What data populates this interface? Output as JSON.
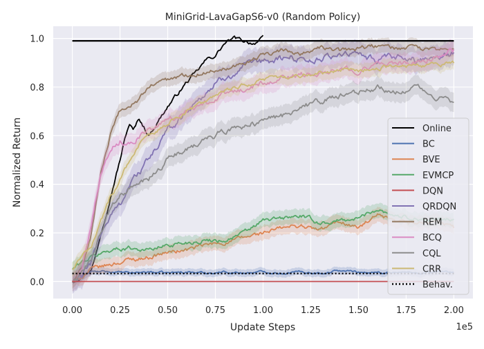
{
  "chart_data": {
    "type": "line",
    "title": "MiniGrid-LavaGapS6-v0 (Random Policy)",
    "xlabel": "Update Steps",
    "ylabel": "Normalized Return",
    "x_offset_text": "1e5",
    "xlim": [
      -0.1,
      2.1
    ],
    "ylim": [
      -0.07,
      1.05
    ],
    "x_unit_scale": 100000,
    "xticks": [
      0.0,
      0.25,
      0.5,
      0.75,
      1.0,
      1.25,
      1.5,
      1.75,
      2.0
    ],
    "xtick_labels": [
      "0.00",
      "0.25",
      "0.50",
      "0.75",
      "1.00",
      "1.25",
      "1.50",
      "1.75",
      "2.00"
    ],
    "yticks": [
      0.0,
      0.2,
      0.4,
      0.6,
      0.8,
      1.0
    ],
    "ytick_labels": [
      "0.0",
      "0.2",
      "0.4",
      "0.6",
      "0.8",
      "1.0"
    ],
    "grid": true,
    "background": "#eaeaf2",
    "legend_position": "center-right",
    "series": [
      {
        "name": "Online",
        "color": "#000000",
        "dash": "solid",
        "band": 0,
        "x": [
          0.0,
          0.1,
          0.12,
          0.15,
          0.2,
          0.25,
          0.28,
          0.3,
          0.32,
          0.35,
          0.38,
          0.4,
          0.45,
          0.5,
          0.55,
          0.6,
          0.65,
          0.7,
          0.75,
          0.8,
          0.85,
          0.9,
          0.95,
          1.0
        ],
        "y": [
          0.0,
          0.05,
          0.1,
          0.2,
          0.35,
          0.5,
          0.6,
          0.65,
          0.62,
          0.67,
          0.63,
          0.6,
          0.66,
          0.72,
          0.77,
          0.82,
          0.86,
          0.91,
          0.93,
          0.98,
          1.0,
          0.99,
          0.98,
          1.0
        ]
      },
      {
        "name": "BC",
        "color": "#4c72b0",
        "dash": "solid",
        "band": 0.015,
        "x": [
          0.0,
          0.05,
          0.1,
          0.2,
          0.3,
          0.4,
          0.5,
          0.6,
          0.7,
          0.8,
          0.9,
          1.0,
          1.1,
          1.2,
          1.3,
          1.4,
          1.5,
          1.6,
          1.7,
          1.8,
          1.9,
          2.0
        ],
        "y": [
          0.0,
          0.02,
          0.04,
          0.04,
          0.035,
          0.04,
          0.035,
          0.04,
          0.035,
          0.04,
          0.035,
          0.04,
          0.035,
          0.04,
          0.035,
          0.045,
          0.04,
          0.035,
          0.04,
          0.035,
          0.04,
          0.04
        ]
      },
      {
        "name": "BVE",
        "color": "#dd8452",
        "dash": "solid",
        "band": 0.03,
        "x": [
          0.0,
          0.05,
          0.1,
          0.2,
          0.3,
          0.4,
          0.5,
          0.6,
          0.7,
          0.8,
          0.9,
          1.0,
          1.1,
          1.2,
          1.3,
          1.4,
          1.5,
          1.6,
          1.7,
          1.8,
          1.9,
          2.0
        ],
        "y": [
          0.0,
          0.02,
          0.05,
          0.07,
          0.09,
          0.1,
          0.12,
          0.13,
          0.15,
          0.16,
          0.18,
          0.2,
          0.22,
          0.23,
          0.21,
          0.25,
          0.22,
          0.27,
          0.24,
          0.24,
          0.25,
          0.22
        ]
      },
      {
        "name": "EVMCP",
        "color": "#55a868",
        "dash": "solid",
        "band": 0.03,
        "x": [
          0.0,
          0.05,
          0.1,
          0.2,
          0.3,
          0.4,
          0.5,
          0.6,
          0.7,
          0.8,
          0.9,
          1.0,
          1.1,
          1.2,
          1.3,
          1.4,
          1.5,
          1.6,
          1.7,
          1.8,
          1.9,
          2.0
        ],
        "y": [
          0.05,
          0.08,
          0.1,
          0.13,
          0.14,
          0.13,
          0.15,
          0.16,
          0.17,
          0.17,
          0.2,
          0.25,
          0.26,
          0.27,
          0.24,
          0.25,
          0.26,
          0.3,
          0.27,
          0.26,
          0.25,
          0.26
        ]
      },
      {
        "name": "DQN",
        "color": "#c44e52",
        "dash": "solid",
        "band": 0,
        "x": [
          0.0,
          2.0
        ],
        "y": [
          0.0,
          0.0
        ]
      },
      {
        "name": "QRDQN",
        "color": "#8172b3",
        "dash": "solid",
        "band": 0.05,
        "x": [
          0.0,
          0.05,
          0.1,
          0.15,
          0.2,
          0.25,
          0.3,
          0.35,
          0.4,
          0.45,
          0.5,
          0.6,
          0.7,
          0.8,
          0.9,
          1.0,
          1.1,
          1.2,
          1.3,
          1.4,
          1.5,
          1.6,
          1.7,
          1.8,
          1.9,
          2.0
        ],
        "y": [
          0.0,
          0.02,
          0.08,
          0.2,
          0.27,
          0.32,
          0.4,
          0.45,
          0.5,
          0.56,
          0.62,
          0.7,
          0.78,
          0.84,
          0.88,
          0.9,
          0.92,
          0.92,
          0.91,
          0.94,
          0.93,
          0.91,
          0.92,
          0.91,
          0.93,
          0.94
        ]
      },
      {
        "name": "REM",
        "color": "#937860",
        "dash": "solid",
        "band": 0.03,
        "x": [
          0.0,
          0.05,
          0.1,
          0.15,
          0.2,
          0.25,
          0.3,
          0.35,
          0.4,
          0.45,
          0.5,
          0.6,
          0.7,
          0.8,
          0.9,
          1.0,
          1.1,
          1.2,
          1.3,
          1.4,
          1.5,
          1.6,
          1.7,
          1.8,
          1.9,
          2.0
        ],
        "y": [
          0.0,
          0.05,
          0.2,
          0.45,
          0.6,
          0.7,
          0.72,
          0.75,
          0.8,
          0.82,
          0.83,
          0.85,
          0.86,
          0.88,
          0.9,
          0.93,
          0.95,
          0.94,
          0.96,
          0.95,
          0.96,
          0.97,
          0.96,
          0.96,
          0.95,
          0.96
        ]
      },
      {
        "name": "BCQ",
        "color": "#da8bc3",
        "dash": "solid",
        "band": 0.04,
        "x": [
          0.0,
          0.05,
          0.1,
          0.15,
          0.2,
          0.25,
          0.3,
          0.35,
          0.4,
          0.5,
          0.6,
          0.7,
          0.8,
          0.9,
          1.0,
          1.1,
          1.2,
          1.3,
          1.4,
          1.5,
          1.6,
          1.7,
          1.8,
          1.9,
          2.0
        ],
        "y": [
          0.0,
          0.05,
          0.25,
          0.45,
          0.55,
          0.58,
          0.57,
          0.6,
          0.62,
          0.66,
          0.7,
          0.74,
          0.77,
          0.79,
          0.82,
          0.84,
          0.85,
          0.86,
          0.88,
          0.87,
          0.89,
          0.9,
          0.9,
          0.92,
          0.95
        ]
      },
      {
        "name": "CQL",
        "color": "#8c8c8c",
        "dash": "solid",
        "band": 0.04,
        "x": [
          0.0,
          0.05,
          0.1,
          0.15,
          0.2,
          0.25,
          0.3,
          0.35,
          0.4,
          0.5,
          0.6,
          0.7,
          0.8,
          0.9,
          1.0,
          1.1,
          1.2,
          1.3,
          1.4,
          1.5,
          1.6,
          1.7,
          1.8,
          1.9,
          2.0
        ],
        "y": [
          0.0,
          0.03,
          0.1,
          0.2,
          0.3,
          0.35,
          0.38,
          0.4,
          0.42,
          0.5,
          0.55,
          0.58,
          0.62,
          0.64,
          0.66,
          0.68,
          0.72,
          0.74,
          0.76,
          0.78,
          0.8,
          0.78,
          0.8,
          0.76,
          0.74
        ]
      },
      {
        "name": "CRR",
        "color": "#ccb974",
        "dash": "solid",
        "band": 0.03,
        "x": [
          0.0,
          0.05,
          0.1,
          0.15,
          0.2,
          0.25,
          0.3,
          0.35,
          0.4,
          0.5,
          0.6,
          0.7,
          0.8,
          0.9,
          1.0,
          1.1,
          1.2,
          1.3,
          1.4,
          1.5,
          1.6,
          1.7,
          1.8,
          1.9,
          2.0
        ],
        "y": [
          0.05,
          0.1,
          0.15,
          0.25,
          0.35,
          0.42,
          0.5,
          0.56,
          0.6,
          0.65,
          0.7,
          0.74,
          0.78,
          0.81,
          0.83,
          0.84,
          0.85,
          0.86,
          0.87,
          0.87,
          0.88,
          0.88,
          0.89,
          0.89,
          0.9
        ]
      },
      {
        "name": "Behav.",
        "color": "#000000",
        "dash": "dotted",
        "band": 0,
        "x": [
          0.0,
          2.0
        ],
        "y": [
          0.033,
          0.033
        ]
      }
    ],
    "online_reference": {
      "series": "Online",
      "y": 0.99,
      "x_range": [
        0.0,
        2.0
      ]
    }
  }
}
